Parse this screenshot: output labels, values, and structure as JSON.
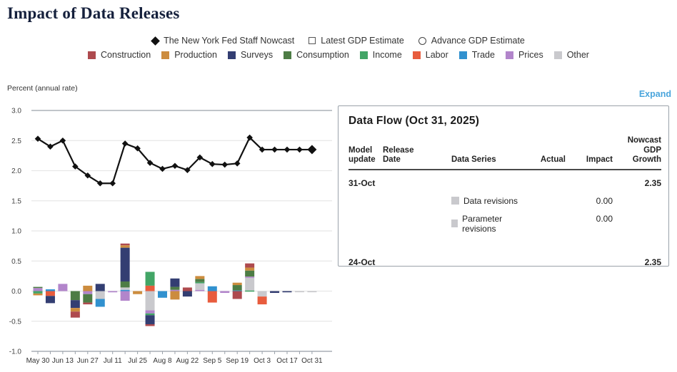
{
  "page": {
    "title": "Impact of Data Releases",
    "expand_label": "Expand",
    "y_axis_label": "Percent (annual rate)"
  },
  "legend": {
    "markers": [
      {
        "id": "nowcast",
        "marker": "filled-diamond",
        "label": "The New York Fed Staff Nowcast"
      },
      {
        "id": "latest-gdp",
        "marker": "open-square",
        "label": "Latest GDP Estimate"
      },
      {
        "id": "advance-gdp",
        "marker": "open-circle",
        "label": "Advance GDP Estimate"
      }
    ],
    "categories": [
      {
        "key": "construction",
        "label": "Construction",
        "color": "#ae4a4e"
      },
      {
        "key": "production",
        "label": "Production",
        "color": "#cc8c3e"
      },
      {
        "key": "surveys",
        "label": "Surveys",
        "color": "#333e72"
      },
      {
        "key": "consumption",
        "label": "Consumption",
        "color": "#4d7c45"
      },
      {
        "key": "income",
        "label": "Income",
        "color": "#42a566"
      },
      {
        "key": "labor",
        "label": "Labor",
        "color": "#e85c3d"
      },
      {
        "key": "trade",
        "label": "Trade",
        "color": "#3191cf"
      },
      {
        "key": "prices",
        "label": "Prices",
        "color": "#b285cb"
      },
      {
        "key": "other",
        "label": "Other",
        "color": "#c9c9cd"
      }
    ]
  },
  "chart_data": {
    "type": "combo-line-stacked-bar",
    "title": "Impact of Data Releases",
    "ylabel": "Percent (annual rate)",
    "ylim": [
      -1.0,
      3.0
    ],
    "y_tick_step": 0.5,
    "grid": true,
    "colors": {
      "construction": "#ae4a4e",
      "production": "#cc8c3e",
      "surveys": "#333e72",
      "consumption": "#4d7c45",
      "income": "#42a566",
      "labor": "#e85c3d",
      "trade": "#3191cf",
      "prices": "#b285cb",
      "other": "#c9c9cd"
    },
    "x_dates": [
      "May 30",
      "Jun 6",
      "Jun 13",
      "Jun 20",
      "Jun 27",
      "Jul 4",
      "Jul 11",
      "Jul 18",
      "Jul 25",
      "Aug 1",
      "Aug 8",
      "Aug 15",
      "Aug 22",
      "Aug 29",
      "Sep 5",
      "Sep 12",
      "Sep 19",
      "Sep 26",
      "Oct 3",
      "Oct 10",
      "Oct 17",
      "Oct 24",
      "Oct 31"
    ],
    "x_tick_labels": [
      "May 30",
      "Jun 13",
      "Jun 27",
      "Jul 11",
      "Jul 25",
      "Aug 8",
      "Aug 22",
      "Sep 5",
      "Sep 19",
      "Oct 3",
      "Oct 17",
      "Oct 31"
    ],
    "line_series": {
      "name": "The New York Fed Staff Nowcast",
      "values": [
        2.53,
        2.4,
        2.5,
        2.07,
        1.92,
        1.79,
        1.79,
        2.45,
        2.37,
        2.13,
        2.03,
        2.08,
        2.01,
        2.22,
        2.11,
        2.1,
        2.12,
        2.55,
        2.35,
        2.35,
        2.35,
        2.35,
        2.35
      ]
    },
    "bars": [
      {
        "date": "May 30",
        "segments": [
          {
            "c": "consumption",
            "v": 0.02
          },
          {
            "c": "prices",
            "v": 0.05
          },
          {
            "c": "income",
            "v": -0.04
          },
          {
            "c": "production",
            "v": -0.03
          }
        ]
      },
      {
        "date": "Jun 6",
        "segments": [
          {
            "c": "trade",
            "v": 0.03
          },
          {
            "c": "labor",
            "v": -0.08
          },
          {
            "c": "surveys",
            "v": -0.12
          }
        ]
      },
      {
        "date": "Jun 13",
        "segments": [
          {
            "c": "prices",
            "v": 0.12
          }
        ]
      },
      {
        "date": "Jun 20",
        "segments": [
          {
            "c": "consumption",
            "v": -0.15
          },
          {
            "c": "surveys",
            "v": -0.13
          },
          {
            "c": "production",
            "v": -0.06
          },
          {
            "c": "construction",
            "v": -0.1
          }
        ]
      },
      {
        "date": "Jun 27",
        "segments": [
          {
            "c": "production",
            "v": 0.09
          },
          {
            "c": "prices",
            "v": -0.05
          },
          {
            "c": "consumption",
            "v": -0.14
          },
          {
            "c": "construction",
            "v": -0.03
          }
        ]
      },
      {
        "date": "Jul 4",
        "segments": [
          {
            "c": "surveys",
            "v": 0.12
          },
          {
            "c": "other",
            "v": -0.13
          },
          {
            "c": "trade",
            "v": -0.13
          }
        ]
      },
      {
        "date": "Jul 11",
        "segments": [
          {
            "c": "prices",
            "v": -0.02
          }
        ]
      },
      {
        "date": "Jul 18",
        "segments": [
          {
            "c": "construction",
            "v": 0.03
          },
          {
            "c": "production",
            "v": 0.04
          },
          {
            "c": "surveys",
            "v": 0.56
          },
          {
            "c": "consumption",
            "v": 0.1
          },
          {
            "c": "other",
            "v": 0.04
          },
          {
            "c": "trade",
            "v": 0.02
          },
          {
            "c": "prices",
            "v": -0.16
          }
        ]
      },
      {
        "date": "Jul 25",
        "segments": [
          {
            "c": "production",
            "v": -0.05
          }
        ]
      },
      {
        "date": "Aug 1",
        "segments": [
          {
            "c": "income",
            "v": 0.23
          },
          {
            "c": "labor",
            "v": 0.09
          },
          {
            "c": "other",
            "v": -0.32
          },
          {
            "c": "prices",
            "v": -0.05
          },
          {
            "c": "income",
            "v": -0.03
          },
          {
            "c": "surveys",
            "v": -0.15
          },
          {
            "c": "construction",
            "v": -0.03
          }
        ]
      },
      {
        "date": "Aug 8",
        "segments": [
          {
            "c": "trade",
            "v": -0.11
          }
        ]
      },
      {
        "date": "Aug 15",
        "segments": [
          {
            "c": "surveys",
            "v": 0.14
          },
          {
            "c": "consumption",
            "v": 0.05
          },
          {
            "c": "prices",
            "v": 0.02
          },
          {
            "c": "production",
            "v": -0.14
          }
        ]
      },
      {
        "date": "Aug 22",
        "segments": [
          {
            "c": "construction",
            "v": 0.06
          },
          {
            "c": "surveys",
            "v": -0.09
          }
        ]
      },
      {
        "date": "Aug 29",
        "segments": [
          {
            "c": "production",
            "v": 0.05
          },
          {
            "c": "consumption",
            "v": 0.05
          },
          {
            "c": "income",
            "v": 0.02
          },
          {
            "c": "other",
            "v": 0.11
          },
          {
            "c": "prices",
            "v": 0.02
          }
        ]
      },
      {
        "date": "Sep 5",
        "segments": [
          {
            "c": "trade",
            "v": 0.08
          },
          {
            "c": "labor",
            "v": -0.19
          }
        ]
      },
      {
        "date": "Sep 12",
        "segments": [
          {
            "c": "prices",
            "v": -0.03
          }
        ]
      },
      {
        "date": "Sep 19",
        "segments": [
          {
            "c": "production",
            "v": 0.04
          },
          {
            "c": "consumption",
            "v": 0.09
          },
          {
            "c": "trade",
            "v": 0.01
          },
          {
            "c": "construction",
            "v": -0.13
          }
        ]
      },
      {
        "date": "Sep 26",
        "segments": [
          {
            "c": "construction",
            "v": 0.07
          },
          {
            "c": "production",
            "v": 0.05
          },
          {
            "c": "consumption",
            "v": 0.1
          },
          {
            "c": "prices",
            "v": 0.02
          },
          {
            "c": "other",
            "v": 0.21
          },
          {
            "c": "income",
            "v": 0.01
          }
        ]
      },
      {
        "date": "Oct 3",
        "segments": [
          {
            "c": "other",
            "v": -0.09
          },
          {
            "c": "labor",
            "v": -0.13
          }
        ]
      },
      {
        "date": "Oct 10",
        "segments": [
          {
            "c": "surveys",
            "v": -0.03
          }
        ]
      },
      {
        "date": "Oct 17",
        "segments": [
          {
            "c": "surveys",
            "v": -0.02
          }
        ]
      },
      {
        "date": "Oct 24",
        "segments": [
          {
            "c": "other",
            "v": -0.01
          }
        ]
      },
      {
        "date": "Oct 31",
        "segments": [
          {
            "c": "other",
            "v": -0.01
          }
        ]
      }
    ]
  },
  "data_flow": {
    "title": "Data Flow (Oct 31, 2025)",
    "columns": {
      "model_update": "Model\nupdate",
      "release_date": "Release\nDate",
      "data_series": "Data Series",
      "actual": "Actual",
      "impact": "Impact",
      "nowcast": "Nowcast\nGDP\nGrowth"
    },
    "rows": [
      {
        "model_update": "31-Oct",
        "nowcast": "2.35"
      },
      {
        "series": "Data revisions",
        "impact": "0.00"
      },
      {
        "series": "Parameter revisions",
        "impact": "0.00"
      },
      {
        "model_update": "24-Oct",
        "nowcast": "2.35"
      }
    ]
  }
}
